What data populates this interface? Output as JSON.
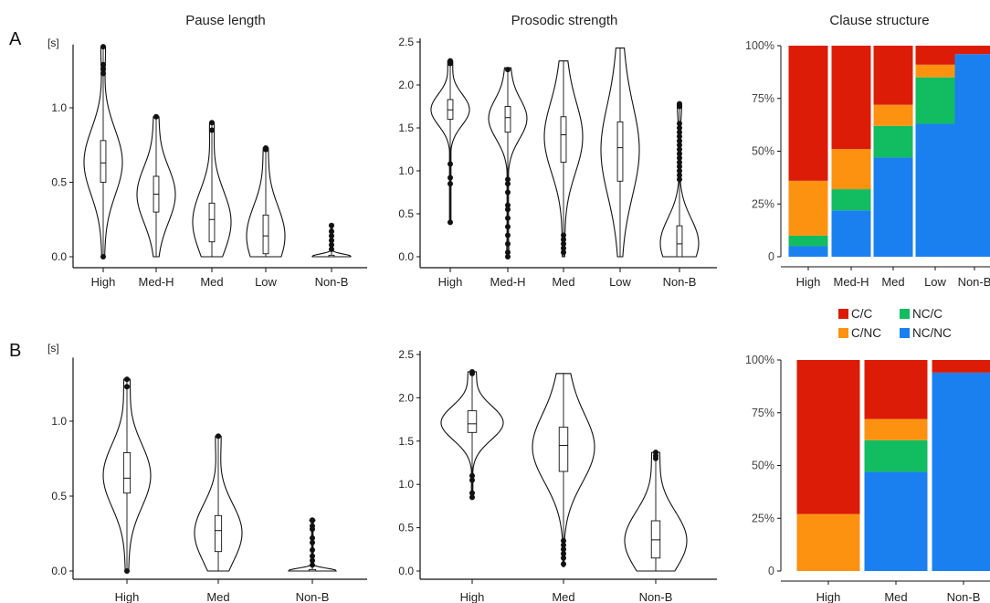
{
  "panel_labels": [
    "A",
    "B"
  ],
  "column_titles": [
    "Pause length",
    "Prosodic strength",
    "Clause structure"
  ],
  "colors": {
    "C/C": "#dd1c08",
    "C/NC": "#fd9211",
    "NC/C": "#12bc60",
    "NC/NC": "#1a80f0"
  },
  "legend": {
    "items": [
      {
        "label": "C/C",
        "color": "#dd1c08"
      },
      {
        "label": "NC/C",
        "color": "#12bc60"
      },
      {
        "label": "C/NC",
        "color": "#fd9211"
      },
      {
        "label": "NC/NC",
        "color": "#1a80f0"
      }
    ]
  },
  "chart_data": [
    {
      "id": "A-pause",
      "type": "violin",
      "title": "Pause length",
      "ylabel": "[s]",
      "ylim": [
        0,
        1.4
      ],
      "yticks": [
        "0.0",
        "0.5",
        "1.0"
      ],
      "ytick_values": [
        0,
        0.5,
        1.0
      ],
      "categories": [
        "High",
        "Med-H",
        "Med",
        "Low",
        "Non-B"
      ],
      "distributions": [
        {
          "category": "High",
          "min": 0.0,
          "q1": 0.5,
          "median": 0.63,
          "q3": 0.78,
          "max": 1.41,
          "outliers": [
            0.0,
            1.23,
            1.26,
            1.29,
            1.41
          ]
        },
        {
          "category": "Med-H",
          "min": 0.0,
          "q1": 0.3,
          "median": 0.42,
          "q3": 0.54,
          "max": 0.94,
          "outliers": [
            0.94
          ]
        },
        {
          "category": "Med",
          "min": 0.0,
          "q1": 0.1,
          "median": 0.25,
          "q3": 0.36,
          "max": 0.9,
          "outliers": [
            0.85,
            0.9
          ]
        },
        {
          "category": "Low",
          "min": 0.0,
          "q1": 0.02,
          "median": 0.14,
          "q3": 0.28,
          "max": 0.73,
          "outliers": [
            0.72,
            0.73
          ]
        },
        {
          "category": "Non-B",
          "min": 0.0,
          "q1": 0.0,
          "median": 0.0,
          "q3": 0.01,
          "max": 0.21,
          "outliers": [
            0.05,
            0.08,
            0.11,
            0.14,
            0.17,
            0.21
          ]
        }
      ]
    },
    {
      "id": "A-prosodic",
      "type": "violin",
      "title": "Prosodic strength",
      "ylim": [
        0,
        2.5
      ],
      "yticks": [
        "0.0",
        "0.5",
        "1.0",
        "1.5",
        "2.0",
        "2.5"
      ],
      "ytick_values": [
        0,
        0.5,
        1.0,
        1.5,
        2.0,
        2.5
      ],
      "categories": [
        "High",
        "Med-H",
        "Med",
        "Low",
        "Non-B"
      ],
      "distributions": [
        {
          "category": "High",
          "min": 0.4,
          "q1": 1.6,
          "median": 1.71,
          "q3": 1.83,
          "max": 2.28,
          "outliers": [
            0.4,
            0.85,
            0.92,
            1.08,
            2.25,
            2.28
          ]
        },
        {
          "category": "Med-H",
          "min": 0.0,
          "q1": 1.45,
          "median": 1.62,
          "q3": 1.75,
          "max": 2.2,
          "outliers": [
            0.0,
            0.05,
            0.15,
            0.25,
            0.35,
            0.45,
            0.55,
            0.6,
            0.75,
            0.85,
            0.9,
            2.18
          ]
        },
        {
          "category": "Med",
          "min": 0.0,
          "q1": 1.1,
          "median": 1.42,
          "q3": 1.63,
          "max": 2.28,
          "outliers": [
            0.05,
            0.1,
            0.15,
            0.2,
            0.25
          ]
        },
        {
          "category": "Low",
          "min": 0.0,
          "q1": 0.88,
          "median": 1.27,
          "q3": 1.57,
          "max": 2.43,
          "outliers": []
        },
        {
          "category": "Non-B",
          "min": 0.0,
          "q1": 0.0,
          "median": 0.15,
          "q3": 0.36,
          "max": 1.78,
          "outliers": [
            0.9,
            0.95,
            1.0,
            1.05,
            1.1,
            1.15,
            1.2,
            1.25,
            1.3,
            1.35,
            1.4,
            1.45,
            1.5,
            1.55,
            1.75,
            1.78
          ]
        }
      ]
    },
    {
      "id": "A-clause",
      "type": "stacked_bar",
      "title": "Clause structure",
      "yticks": [
        "0",
        "25%",
        "50%",
        "75%",
        "100%"
      ],
      "ytick_values": [
        0,
        25,
        50,
        75,
        100
      ],
      "categories": [
        "High",
        "Med-H",
        "Med",
        "Low",
        "Non-B"
      ],
      "series": [
        {
          "name": "NC/NC",
          "values": [
            5,
            22,
            47,
            63,
            96
          ]
        },
        {
          "name": "NC/C",
          "values": [
            5,
            10,
            15,
            22,
            0
          ]
        },
        {
          "name": "C/NC",
          "values": [
            26,
            19,
            10,
            6,
            0
          ]
        },
        {
          "name": "C/C",
          "values": [
            64,
            49,
            28,
            9,
            4
          ]
        }
      ]
    },
    {
      "id": "B-pause",
      "type": "violin",
      "ylabel": "[s]",
      "ylim": [
        0,
        1.4
      ],
      "yticks": [
        "0.0",
        "0.5",
        "1.0"
      ],
      "ytick_values": [
        0,
        0.5,
        1.0
      ],
      "categories": [
        "High",
        "Med",
        "Non-B"
      ],
      "distributions": [
        {
          "category": "High",
          "min": 0.0,
          "q1": 0.52,
          "median": 0.62,
          "q3": 0.79,
          "max": 1.28,
          "outliers": [
            0.0,
            1.23,
            1.28
          ]
        },
        {
          "category": "Med",
          "min": 0.0,
          "q1": 0.13,
          "median": 0.27,
          "q3": 0.37,
          "max": 0.9,
          "outliers": [
            0.9
          ]
        },
        {
          "category": "Non-B",
          "min": 0.0,
          "q1": 0.0,
          "median": 0.0,
          "q3": 0.01,
          "max": 0.34,
          "outliers": [
            0.04,
            0.07,
            0.1,
            0.14,
            0.19,
            0.22,
            0.28,
            0.3,
            0.34
          ]
        }
      ]
    },
    {
      "id": "B-prosodic",
      "type": "violin",
      "ylim": [
        0,
        2.5
      ],
      "yticks": [
        "0.0",
        "0.5",
        "1.0",
        "1.5",
        "2.0",
        "2.5"
      ],
      "ytick_values": [
        0,
        0.5,
        1.0,
        1.5,
        2.0,
        2.5
      ],
      "categories": [
        "High",
        "Med",
        "Non-B"
      ],
      "distributions": [
        {
          "category": "High",
          "min": 0.85,
          "q1": 1.6,
          "median": 1.7,
          "q3": 1.85,
          "max": 2.3,
          "outliers": [
            0.85,
            0.9,
            1.05,
            1.1,
            2.28,
            2.3
          ]
        },
        {
          "category": "Med",
          "min": 0.05,
          "q1": 1.15,
          "median": 1.45,
          "q3": 1.66,
          "max": 2.28,
          "outliers": [
            0.08,
            0.15,
            0.2,
            0.25,
            0.3,
            0.35
          ]
        },
        {
          "category": "Non-B",
          "min": 0.0,
          "q1": 0.15,
          "median": 0.36,
          "q3": 0.58,
          "max": 1.37,
          "outliers": [
            1.3,
            1.33,
            1.37
          ]
        }
      ]
    },
    {
      "id": "B-clause",
      "type": "stacked_bar",
      "yticks": [
        "0",
        "25%",
        "50%",
        "75%",
        "100%"
      ],
      "ytick_values": [
        0,
        25,
        50,
        75,
        100
      ],
      "categories": [
        "High",
        "Med",
        "Non-B"
      ],
      "series": [
        {
          "name": "NC/NC",
          "values": [
            0,
            47,
            94
          ]
        },
        {
          "name": "NC/C",
          "values": [
            0,
            15,
            0
          ]
        },
        {
          "name": "C/NC",
          "values": [
            27,
            10,
            0
          ]
        },
        {
          "name": "C/C",
          "values": [
            73,
            28,
            6
          ]
        }
      ]
    }
  ]
}
